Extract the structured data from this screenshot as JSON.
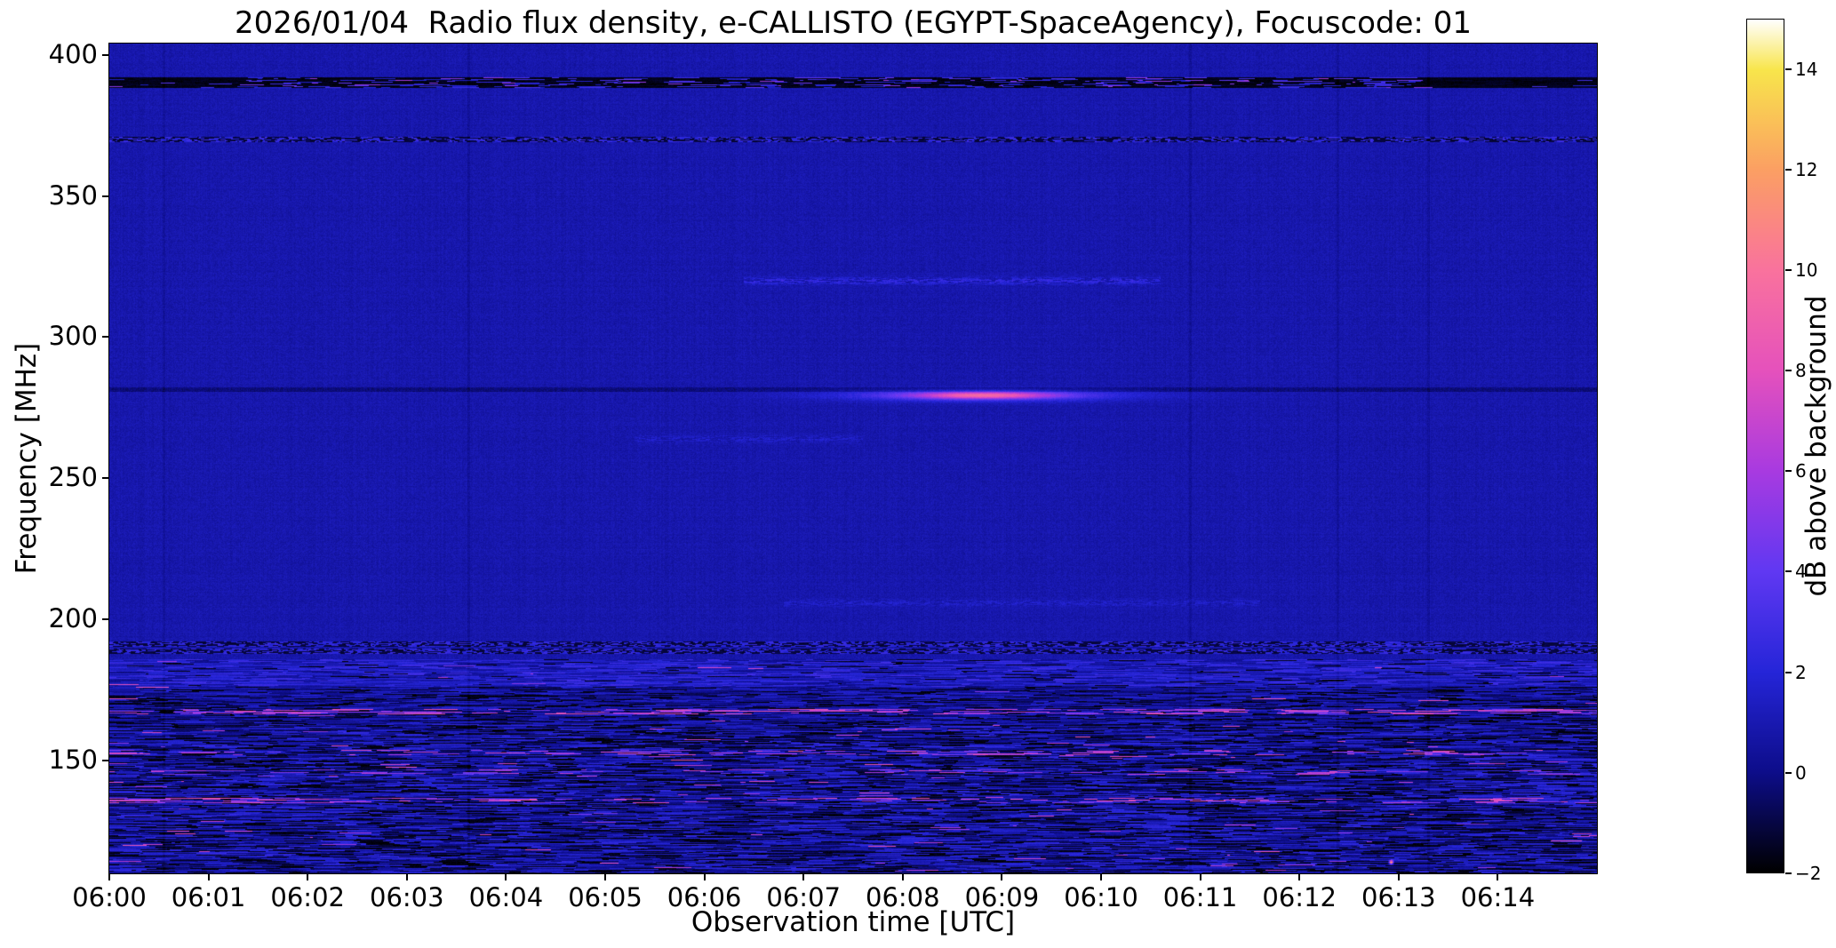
{
  "chart_data": {
    "type": "heatmap",
    "title": "2026/01/04  Radio flux density, e-CALLISTO (EGYPT-SpaceAgency), Focuscode: 01",
    "xlabel": "Observation time [UTC]",
    "ylabel": "Frequency [MHz]",
    "colorbar_label": "dB above background",
    "x_tick_labels": [
      "06:00",
      "06:01",
      "06:02",
      "06:03",
      "06:04",
      "06:05",
      "06:06",
      "06:07",
      "06:08",
      "06:09",
      "06:10",
      "06:11",
      "06:12",
      "06:13",
      "06:14"
    ],
    "time_minutes": 15,
    "y_ticks": [
      400,
      350,
      300,
      250,
      200,
      150
    ],
    "freq_range": [
      110,
      404
    ],
    "value_range": [
      -2,
      15
    ],
    "colorbar_ticks": [
      14,
      12,
      10,
      8,
      6,
      4,
      2,
      0,
      -2
    ],
    "colorbar_tick_labels": [
      "14",
      "12",
      "10",
      "8",
      "6",
      "4",
      "2",
      "0",
      "−2"
    ],
    "colormap_stops": [
      [
        -2,
        "#000000"
      ],
      [
        0,
        "#0d0d8a"
      ],
      [
        2,
        "#2525d8"
      ],
      [
        4,
        "#6038f2"
      ],
      [
        6,
        "#a83ae0"
      ],
      [
        8,
        "#e551bc"
      ],
      [
        10,
        "#f9729d"
      ],
      [
        12,
        "#fb9f63"
      ],
      [
        14,
        "#f8e54b"
      ],
      [
        15,
        "#ffffff"
      ]
    ],
    "background_level_db": 0.85,
    "grid": false,
    "features": [
      {
        "kind": "noisy_dark_row",
        "freq": 390.3,
        "half_mhz": 1.6,
        "desc": "black RFI band near 390 MHz with scattered blue speckles, solid dark at both ends"
      },
      {
        "kind": "speckle_row",
        "freq": 370.2,
        "half_mhz": 0.9,
        "desc": "fine dark/blue speckled interference line near 370 MHz"
      },
      {
        "kind": "faint_trace",
        "freq": 320,
        "t0": 6.4,
        "t1": 10.6,
        "amp": 1.7,
        "desc": "faint dotted emission trace near 320 MHz from ~06:06.4 to ~06:10.6"
      },
      {
        "kind": "faint_trace",
        "freq": 264,
        "t0": 5.3,
        "t1": 7.6,
        "amp": 0.9,
        "desc": "very faint brightening near 264 MHz"
      },
      {
        "kind": "dark_line",
        "freq": 281.5,
        "amp": -1.1,
        "desc": "dark instrumental line across full duration near 281 MHz"
      },
      {
        "kind": "burst",
        "freq": 279.5,
        "t_center": 8.8,
        "amp_core": 5.5,
        "t_sigma_core": 0.5,
        "f_sigma_core": 0.9,
        "amp_broad": 3.2,
        "t_sigma_broad": 1.0,
        "f_sigma_broad": 1.4,
        "desc": "bright narrowband emission streak at ~280 MHz from ~06:07.5 to ~06:10.5, peak ~8-9 dB"
      },
      {
        "kind": "faint_trace",
        "freq": 206,
        "t0": 6.8,
        "t1": 11.6,
        "amp": 0.9,
        "desc": "faint dotted trace near 206 MHz"
      },
      {
        "kind": "speckle_row",
        "freq": 191.5,
        "half_mhz": 0.8,
        "desc": "dotted interference line near 191 MHz"
      },
      {
        "kind": "speckle_row",
        "freq": 188.8,
        "half_mhz": 0.7,
        "desc": "dotted interference line near 189 MHz"
      },
      {
        "kind": "noise_band",
        "f_lo": 176,
        "f_hi": 186,
        "base": 1.4,
        "var": 1.5,
        "black_prob": 0.06,
        "pink_prob": 0.006,
        "desc": "noisy blue RFI band 176-186 MHz with occasional magenta bursts"
      },
      {
        "kind": "noise_band",
        "f_lo": 163,
        "f_hi": 176,
        "base": 0.5,
        "var": 1.4,
        "black_prob": 0.2,
        "pink_prob": 0.004,
        "desc": "dark speckled RFI band 163-176 MHz"
      },
      {
        "kind": "dash_row",
        "freq": 167.5,
        "prob": 0.42,
        "amp": 6.5,
        "half_mhz": 0.8,
        "desc": "intermittent bright pink carrier segments near 167 MHz"
      },
      {
        "kind": "noise_band",
        "f_lo": 110,
        "f_hi": 163,
        "base": 0.7,
        "var": 1.8,
        "black_prob": 0.22,
        "pink_prob": 0.01,
        "desc": "broad strong RFI region below 163 MHz: streaky blue/black noise with bright dashes"
      },
      {
        "kind": "dash_row",
        "freq": 153,
        "prob": 0.2,
        "amp": 6,
        "half_mhz": 0.7,
        "desc": "pink carrier dashes near 153 MHz"
      },
      {
        "kind": "dash_row",
        "freq": 146,
        "prob": 0.16,
        "amp": 5.5,
        "half_mhz": 0.7,
        "desc": "pink carrier dashes near 146 MHz"
      },
      {
        "kind": "dash_row",
        "freq": 136,
        "prob": 0.26,
        "amp": 6.5,
        "half_mhz": 0.8,
        "desc": "bright pink carrier dashes near 136 MHz"
      },
      {
        "kind": "dark_column",
        "t": 0.55,
        "amp": -0.45,
        "desc": "faint dark vertical line ~06:00.5"
      },
      {
        "kind": "dark_column",
        "t": 3.62,
        "amp": -0.45,
        "desc": "faint dark vertical line ~06:03.6"
      },
      {
        "kind": "dark_column",
        "t": 10.9,
        "amp": -0.45,
        "desc": "faint dark vertical line ~06:10.9"
      },
      {
        "kind": "dark_column",
        "t": 12.38,
        "amp": -0.45,
        "desc": "faint dark vertical line ~06:12.4"
      },
      {
        "kind": "dark_column",
        "t": 13.3,
        "amp": -0.45,
        "desc": "faint dark vertical line ~06:13.3"
      },
      {
        "kind": "spot",
        "freq": 114,
        "t": 12.92,
        "amp": 12,
        "desc": "single orange hot pixel near bottom right"
      }
    ]
  }
}
